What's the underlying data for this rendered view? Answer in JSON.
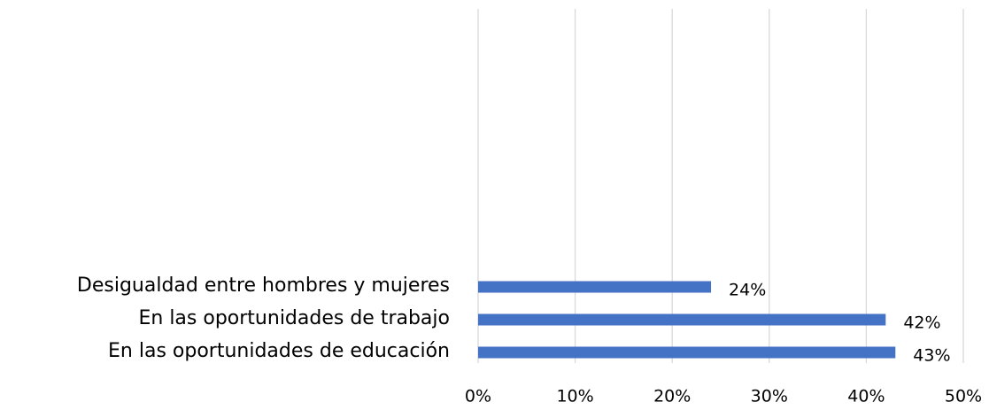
{
  "chart_data": {
    "type": "hbar",
    "categories": [
      "Desigualdad entre hombres y mujeres",
      "En las oportunidades de trabajo",
      "En las oportunidades de educación"
    ],
    "values": [
      24,
      42,
      43
    ],
    "value_labels": [
      "24%",
      "42%",
      "43%"
    ],
    "color": "#4472c4",
    "xlim": [
      0,
      50
    ],
    "xticks": [
      {
        "value": 0,
        "label": "0%"
      },
      {
        "value": 10,
        "label": "10%"
      },
      {
        "value": 20,
        "label": "20%"
      },
      {
        "value": 30,
        "label": "30%"
      },
      {
        "value": 40,
        "label": "40%"
      },
      {
        "value": 50,
        "label": "50%"
      }
    ],
    "grid": true
  }
}
